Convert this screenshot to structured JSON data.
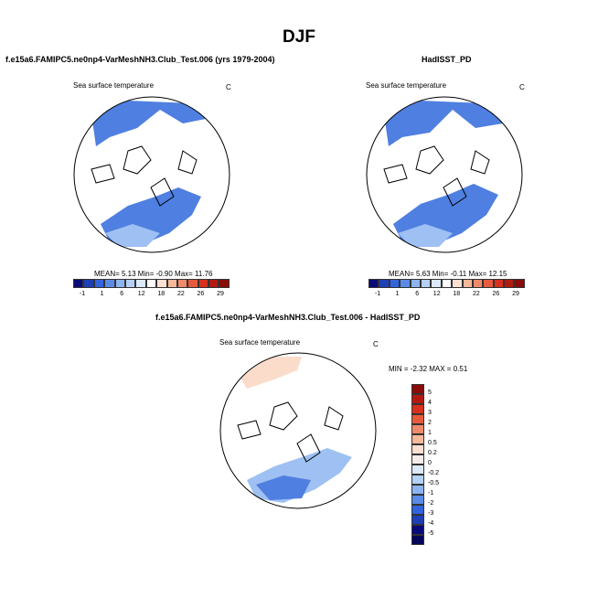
{
  "figure": {
    "season_title": "DJF",
    "panel_left_title": "f.e15a6.FAMIPC5.ne0np4-VarMeshNH3.Club_Test.006 (yrs 1979-2004)",
    "panel_right_title": "HadISST_PD",
    "panel_diff_title": "f.e15a6.FAMIPC5.ne0np4-VarMeshNH3.Club_Test.006 - HadISST_PD"
  },
  "map_left": {
    "variable": "Sea surface temperature",
    "units": "C",
    "stats": "MEAN=   5.13  Min=  -0.90  Max=  11.76"
  },
  "map_right": {
    "variable": "Sea surface temperature",
    "units": "C",
    "stats": "MEAN=   5.63  Min=  -0.11  Max=  12.15"
  },
  "map_diff": {
    "variable": "Sea surface temperature",
    "units": "C",
    "stats": "MIN =  -2.32 MAX =   0.51"
  },
  "colorbar_abs": {
    "labels": [
      "-1",
      "1",
      "6",
      "12",
      "18",
      "22",
      "26",
      "29"
    ],
    "colors": [
      "#0a0a7a",
      "#1e3fb5",
      "#3264dc",
      "#5a8be6",
      "#8cb4f0",
      "#b4d2f8",
      "#dce9fa",
      "#ffffff",
      "#fde0d2",
      "#f8b89a",
      "#f08a6a",
      "#e85a3c",
      "#d8301c",
      "#b21a10",
      "#8a0c08"
    ]
  },
  "colorbar_diff": {
    "labels": [
      "5",
      "4",
      "3",
      "2",
      "1",
      "0.5",
      "0.2",
      "0",
      "-0.2",
      "-0.5",
      "-1",
      "-2",
      "-3",
      "-4",
      "-5"
    ],
    "colors": [
      "#8a0c08",
      "#b21a10",
      "#d8301c",
      "#e85a3c",
      "#f08a6a",
      "#f8b89a",
      "#fde0d2",
      "#f6ecea",
      "#dce9fa",
      "#b4d2f8",
      "#8cb4f0",
      "#5a8be6",
      "#3264dc",
      "#1e3fb5",
      "#0a0a7a",
      "#05055a"
    ]
  },
  "colors": {
    "ocean_blue": "#4f7fe0",
    "ocean_light_blue": "#9ec0f2",
    "diff_warm": "#fbdccb"
  }
}
